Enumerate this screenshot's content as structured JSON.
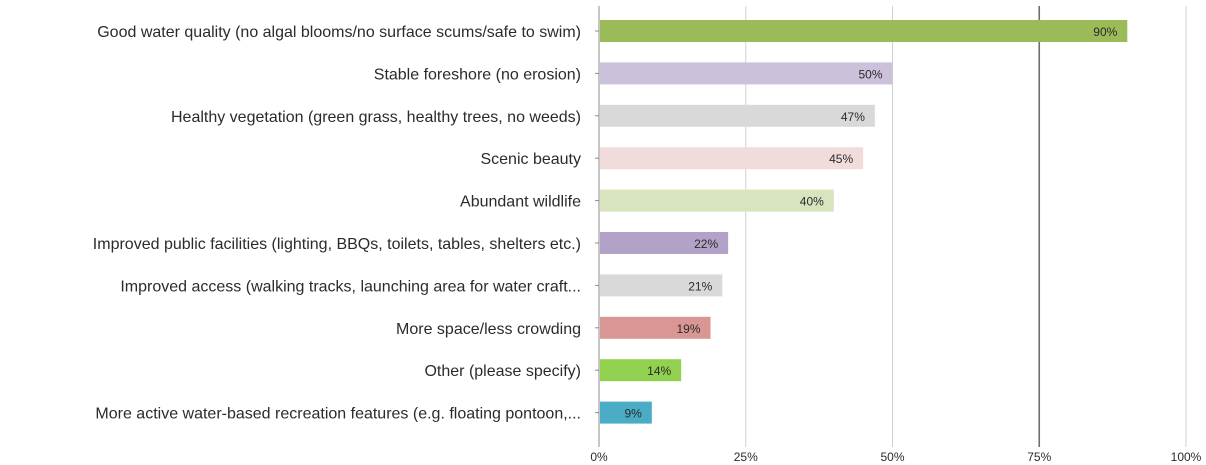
{
  "chart_data": {
    "type": "bar",
    "orientation": "horizontal",
    "categories": [
      "Good water quality (no algal blooms/no surface scums/safe to swim)",
      "Stable foreshore (no erosion)",
      "Healthy vegetation (green grass, healthy trees, no weeds)",
      "Scenic beauty",
      "Abundant wildlife",
      "Improved public facilities (lighting, BBQs, toilets, tables, shelters etc.)",
      "Improved access (walking tracks, launching area for water craft...",
      "More space/less crowding",
      "Other (please specify)",
      "More active water-based recreation features (e.g. floating pontoon,..."
    ],
    "values": [
      90,
      50,
      47,
      45,
      40,
      22,
      21,
      19,
      14,
      9
    ],
    "value_labels": [
      "90%",
      "50%",
      "47%",
      "45%",
      "40%",
      "22%",
      "21%",
      "19%",
      "14%",
      "9%"
    ],
    "bar_colors": [
      "#9bbb59",
      "#ccc1da",
      "#d9d9d9",
      "#f2dcdb",
      "#d7e4bd",
      "#b3a2c7",
      "#d9d9d9",
      "#d99694",
      "#92d050",
      "#4bacc6"
    ],
    "xlim": [
      0,
      100
    ],
    "xticks": [
      0,
      25,
      50,
      75,
      100
    ],
    "xtick_labels": [
      "0%",
      "25%",
      "50%",
      "75%",
      "100%"
    ],
    "gridlines": "vertical",
    "highlight_gridline": 75,
    "title": "",
    "xlabel": "",
    "ylabel": ""
  }
}
